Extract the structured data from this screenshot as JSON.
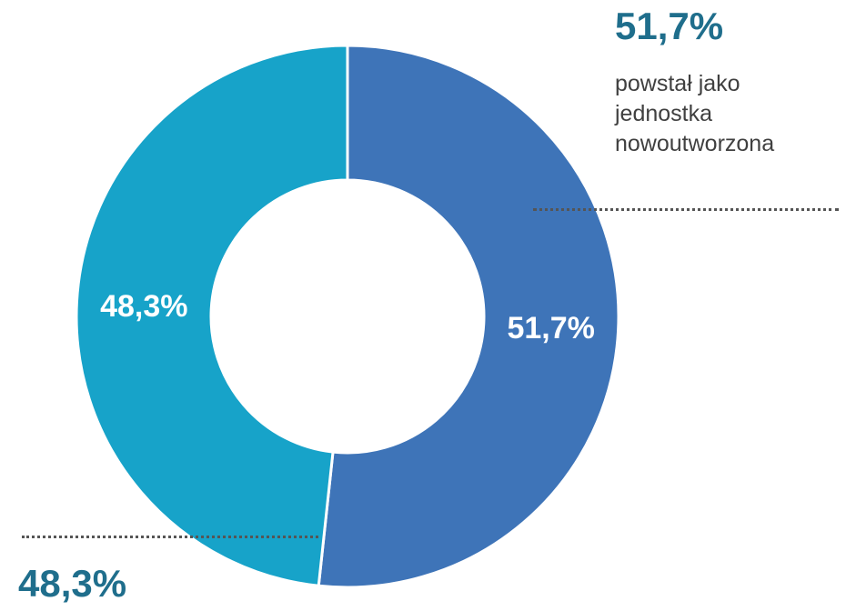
{
  "chart_data": {
    "type": "pie",
    "donut": true,
    "title": "",
    "categories": [
      "powstał jako jednostka nowoutworzona",
      ""
    ],
    "values": [
      51.7,
      48.3
    ],
    "value_labels": [
      "51,7%",
      "48,3%"
    ],
    "colors": [
      "#3E74B8",
      "#17A3C9"
    ],
    "legend": "callouts"
  },
  "callouts": {
    "right": {
      "pct": "51,7%",
      "lines": [
        "powstał jako",
        "jednostka",
        "nowoutworzona"
      ]
    },
    "left": {
      "pct": "48,3%"
    }
  },
  "colors": {
    "accent_text": "#1F6E8C",
    "body_text": "#404040",
    "leader": "#555555"
  }
}
